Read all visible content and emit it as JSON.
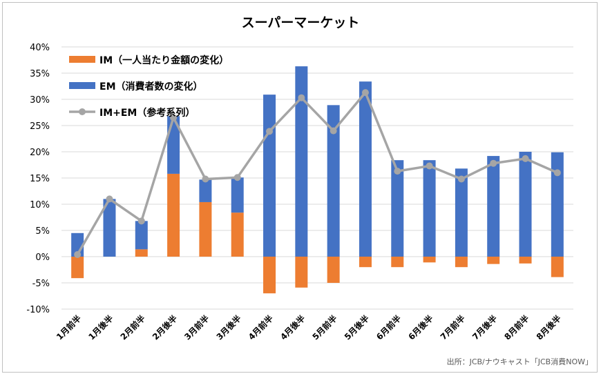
{
  "chart_data": {
    "type": "bar",
    "stacked": true,
    "title": "スーパーマーケット",
    "source": "出所：JCB/ナウキャスト「JCB消費NOW」",
    "categories": [
      "1月前半",
      "1月後半",
      "2月前半",
      "2月後半",
      "3月前半",
      "3月後半",
      "4月前半",
      "4月後半",
      "5月前半",
      "5月後半",
      "6月前半",
      "6月後半",
      "7月前半",
      "7月後半",
      "8月前半",
      "8月後半"
    ],
    "ylim": [
      -10,
      40
    ],
    "yticks": [
      "-10%",
      "-5%",
      "0%",
      "5%",
      "10%",
      "15%",
      "20%",
      "25%",
      "30%",
      "35%",
      "40%"
    ],
    "grid": true,
    "legend": "top-left",
    "series": [
      {
        "name": "IM（一人当たり金額の変化）",
        "type": "bar",
        "color": "#ED7D31",
        "values": [
          -4.1,
          0.0,
          1.4,
          15.8,
          10.4,
          8.4,
          -7.0,
          -5.9,
          -5.0,
          -2.0,
          -2.0,
          -1.1,
          -2.0,
          -1.4,
          -1.3,
          -3.9
        ]
      },
      {
        "name": "EM（消費者数の変化）",
        "type": "bar",
        "color": "#4472C4",
        "values": [
          4.5,
          11.0,
          5.4,
          11.0,
          4.3,
          6.7,
          30.9,
          36.3,
          28.9,
          33.4,
          18.4,
          18.4,
          16.8,
          19.2,
          20.0,
          19.9
        ]
      },
      {
        "name": "IM+EM（参考系列）",
        "type": "line",
        "color": "#A5A5A5",
        "values": [
          0.4,
          11.0,
          6.8,
          26.5,
          14.8,
          15.1,
          23.9,
          30.3,
          24.0,
          31.3,
          16.3,
          17.3,
          14.8,
          17.8,
          18.7,
          16.0
        ]
      }
    ]
  }
}
